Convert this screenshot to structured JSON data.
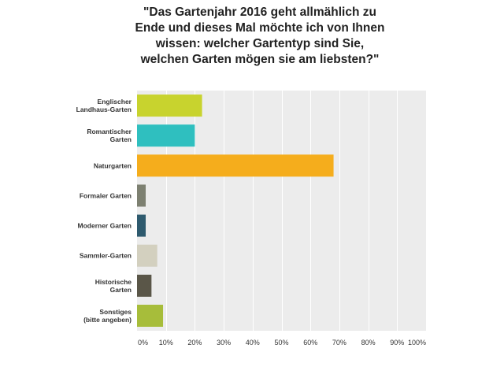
{
  "chart_data": {
    "type": "bar",
    "orientation": "horizontal",
    "title_lines": [
      "\"Das Gartenjahr 2016 geht allmählich zu",
      "Ende und dieses Mal möchte ich von Ihnen",
      "wissen: welcher Gartentyp sind Sie,",
      "welchen Garten mögen sie am liebsten?\""
    ],
    "categories": [
      [
        "Englischer",
        "Landhaus-Garten"
      ],
      [
        "Romantischer",
        "Garten"
      ],
      [
        "Naturgarten"
      ],
      [
        "Formaler Garten"
      ],
      [
        "Moderner Garten"
      ],
      [
        "Sammler-Garten"
      ],
      [
        "Historische",
        "Garten"
      ],
      [
        "Sonstiges",
        "(bitte angeben)"
      ]
    ],
    "values": [
      22.5,
      20,
      68,
      3,
      3,
      7,
      5,
      9
    ],
    "colors": [
      "#c8d32e",
      "#2fbfbf",
      "#f5ad1c",
      "#7d8071",
      "#2e5a6e",
      "#d3d0bf",
      "#5a5648",
      "#a7bd3a"
    ],
    "xlim": [
      0,
      100
    ],
    "xticks": [
      "0%",
      "10%",
      "20%",
      "30%",
      "40%",
      "50%",
      "60%",
      "70%",
      "80%",
      "90%",
      "100%"
    ],
    "grid": true,
    "unit": "%"
  }
}
